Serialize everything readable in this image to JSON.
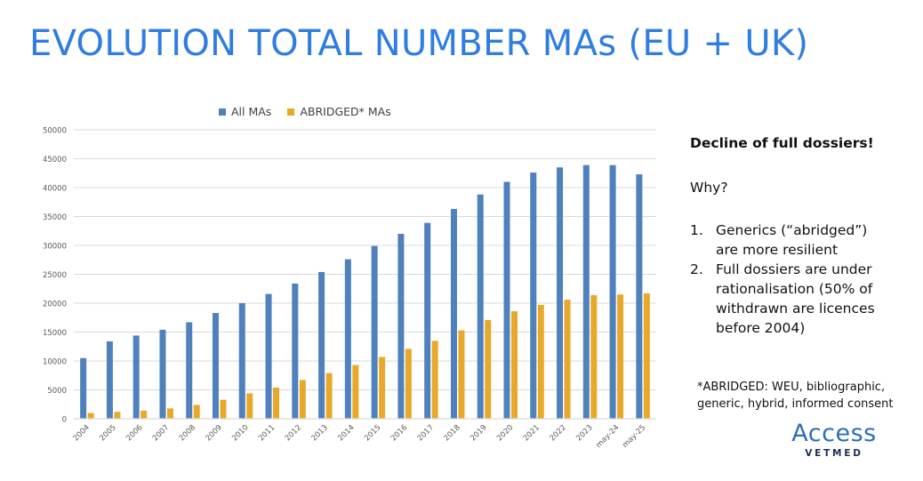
{
  "slide": {
    "title": "EVOLUTION TOTAL NUMBER MAs (EU + UK)"
  },
  "side_panel": {
    "heading": "Decline of full dossiers!",
    "question": "Why?",
    "reasons": [
      {
        "num": "1.",
        "text": "Generics (“abridged”) are more resilient"
      },
      {
        "num": "2.",
        "text": "Full dossiers are under rationalisation (50% of withdrawn are licences before 2004)"
      }
    ],
    "footnote_line1": "*ABRIDGED: WEU, bibliographic,",
    "footnote_line2": "generic, hybrid, informed consent"
  },
  "logo": {
    "brand": "Access",
    "sub": "VETMED",
    "color": "#2b6fb6"
  },
  "chart_data": {
    "type": "bar",
    "title": "",
    "xlabel": "",
    "ylabel": "",
    "ylim": [
      0,
      50000
    ],
    "yticks": [
      0,
      5000,
      10000,
      15000,
      20000,
      25000,
      30000,
      35000,
      40000,
      45000,
      50000
    ],
    "grid": true,
    "legend_position": "top-center",
    "categories": [
      "2004",
      "2005",
      "2006",
      "2007",
      "2008",
      "2009",
      "2010",
      "2011",
      "2012",
      "2013",
      "2014",
      "2015",
      "2016",
      "2017",
      "2018",
      "2019",
      "2020",
      "2021",
      "2022",
      "2023",
      "may-24",
      "may-25"
    ],
    "series": [
      {
        "name": "All MAs",
        "color": "#4f81bd",
        "values": [
          10500,
          13400,
          14400,
          15400,
          16700,
          18300,
          20000,
          21600,
          23400,
          25400,
          27600,
          29900,
          32000,
          33900,
          36300,
          38800,
          41000,
          42600,
          43500,
          43900,
          43900,
          42300
        ]
      },
      {
        "name": "ABRIDGED* MAs",
        "color": "#e8a92a",
        "values": [
          1000,
          1200,
          1400,
          1800,
          2400,
          3300,
          4400,
          5400,
          6700,
          7900,
          9300,
          10700,
          12100,
          13500,
          15300,
          17100,
          18600,
          19700,
          20600,
          21400,
          21500,
          21700
        ]
      }
    ]
  }
}
